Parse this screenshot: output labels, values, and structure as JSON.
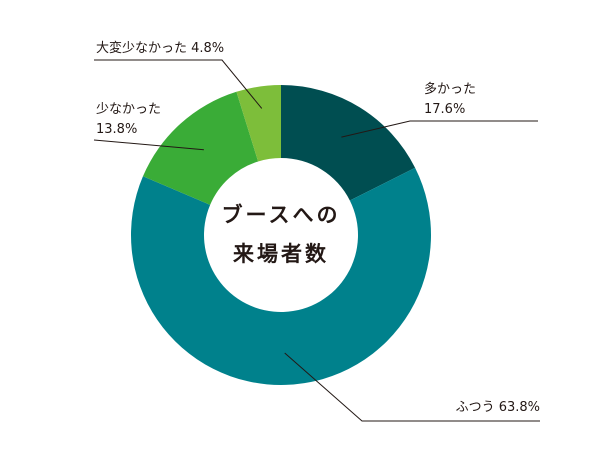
{
  "chart_data": {
    "type": "pie",
    "title": "",
    "center_label": [
      "ブースへの",
      "来場者数"
    ],
    "slices": [
      {
        "name": "多かった",
        "value": 17.6,
        "value_label": "17.6%",
        "color": "#004e51"
      },
      {
        "name": "ふつう",
        "value": 63.8,
        "value_label": "63.8%",
        "color": "#00818c"
      },
      {
        "name": "少なかった",
        "value": 13.8,
        "value_label": "13.8%",
        "color": "#3aac37"
      },
      {
        "name": "大変少なかった",
        "value": 4.8,
        "value_label": "4.8%",
        "color": "#7dbe3a"
      }
    ],
    "start_angle_deg": 0,
    "direction": "clockwise",
    "donut": true
  }
}
